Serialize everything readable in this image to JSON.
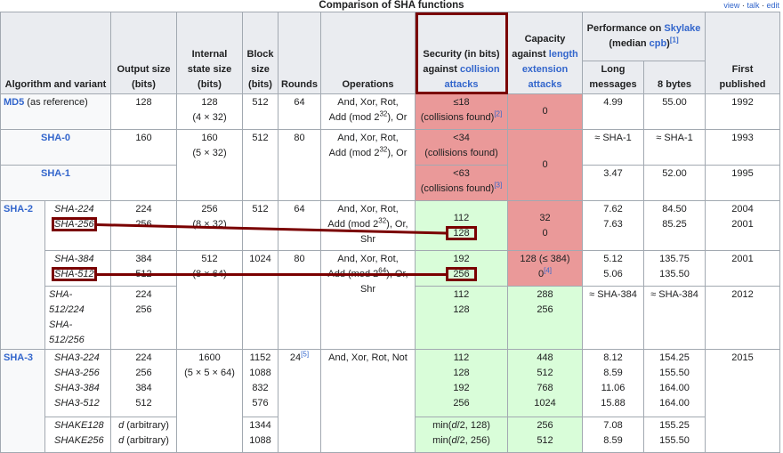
{
  "caption": "Comparison of SHA functions",
  "navbar": {
    "view": "view",
    "talk": "talk",
    "edit": "edit",
    "sep": "·"
  },
  "headers": {
    "algorithm": "Algorithm and variant",
    "output": "Output size (bits)",
    "internal": "Internal state size (bits)",
    "block": "Block size (bits)",
    "rounds": "Rounds",
    "operations": "Operations",
    "security_prefix": "Security (in bits) against ",
    "security_link": "collision attacks",
    "capacity_prefix": "Capacity against ",
    "capacity_link": "length extension attacks",
    "perf_prefix": "Performance on ",
    "perf_link1": "Skylake",
    "perf_mid": " (median ",
    "perf_link2": "cpb",
    "perf_suffix": ")",
    "perf_ref": "[1]",
    "long": "Long messages",
    "bytes8": "8 bytes",
    "first": "First published"
  },
  "md5": {
    "name": "MD5",
    "suffix": " (as reference)",
    "output": "128",
    "internal": "128",
    "internal2": "(4 × 32)",
    "block": "512",
    "rounds": "64",
    "ops1": "And, Xor, Rot,",
    "ops2": "Add (mod 2",
    "ops_exp": "32",
    "ops3": "), Or",
    "security": "≤18",
    "security2": "(collisions found)",
    "security_ref": "[2]",
    "capacity": "0",
    "long": "4.99",
    "bytes8": "55.00",
    "first": "1992"
  },
  "sha0": {
    "name": "SHA-0",
    "output": "160",
    "internal": "160",
    "internal2": "(5 × 32)",
    "block": "512",
    "rounds": "80",
    "ops1": "And, Xor, Rot,",
    "ops2": "Add (mod 2",
    "ops_exp": "32",
    "ops3": "), Or",
    "security": "<34",
    "security2": "(collisions found)",
    "capacity": "0",
    "long": "≈ SHA-1",
    "bytes8": "≈ SHA-1",
    "first": "1993"
  },
  "sha1": {
    "name": "SHA-1",
    "security": "<63",
    "security2": "(collisions found)",
    "security_ref": "[3]",
    "long": "3.47",
    "bytes8": "52.00",
    "first": "1995"
  },
  "sha2": {
    "name": "SHA-2",
    "g1": {
      "v1": "SHA-224",
      "v2": "SHA-256",
      "out1": "224",
      "out2": "256",
      "internal": "256",
      "internal2": "(8 × 32)",
      "block": "512",
      "rounds": "64",
      "ops1": "And, Xor, Rot,",
      "ops2": "Add (mod 2",
      "ops_exp": "32",
      "ops3": "), Or,",
      "ops4": "Shr",
      "sec1": "112",
      "sec2": "128",
      "cap1": "32",
      "cap2": "0",
      "long1": "7.62",
      "long2": "7.63",
      "b1": "84.50",
      "b2": "85.25",
      "first1": "2004",
      "first2": "2001"
    },
    "g2": {
      "v1": "SHA-384",
      "v2": "SHA-512",
      "out1": "384",
      "out2": "512",
      "internal": "512",
      "internal2": "(8 × 64)",
      "block": "1024",
      "rounds": "80",
      "ops1": "And, Xor, Rot,",
      "ops2": "Add (mod 2",
      "ops_exp": "64",
      "ops3": "), Or,",
      "ops4": "Shr",
      "sec1": "192",
      "sec2": "256",
      "cap1": "128 (≤ 384)",
      "cap2": "0",
      "cap2_ref": "[4]",
      "long1": "5.12",
      "long2": "5.06",
      "b1": "135.75",
      "b2": "135.50",
      "first": "2001"
    },
    "g3": {
      "v1": "SHA-512/224",
      "v2": "SHA-512/256",
      "out1": "224",
      "out2": "256",
      "sec1": "112",
      "sec2": "128",
      "cap1": "288",
      "cap2": "256",
      "long": "≈ SHA-384",
      "bytes8": "≈ SHA-384",
      "first": "2012"
    }
  },
  "sha3": {
    "name": "SHA-3",
    "g1": {
      "variants": [
        "SHA3-224",
        "SHA3-256",
        "SHA3-384",
        "SHA3-512"
      ],
      "outputs": [
        "224",
        "256",
        "384",
        "512"
      ],
      "internal": "1600",
      "internal2": "(5 × 5 × 64)",
      "blocks": [
        "1152",
        "1088",
        "832",
        "576"
      ],
      "rounds": "24",
      "rounds_ref": "[5]",
      "ops": "And, Xor, Rot, Not",
      "sec": [
        "112",
        "128",
        "192",
        "256"
      ],
      "cap": [
        "448",
        "512",
        "768",
        "1024"
      ],
      "long": [
        "8.12",
        "8.59",
        "11.06",
        "15.88"
      ],
      "b8": [
        "154.25",
        "155.50",
        "164.00",
        "164.00"
      ],
      "first": "2015"
    },
    "g2": {
      "v1": "SHAKE128",
      "v2": "SHAKE256",
      "out_d": "d",
      "out_rest": " (arbitrary)",
      "block1": "1344",
      "block2": "1088",
      "sec1_pre": "min(",
      "sec1_d": "d",
      "sec1_post": "/2, 128)",
      "sec2_pre": "min(",
      "sec2_d": "d",
      "sec2_post": "/2, 256)",
      "cap1": "256",
      "cap2": "512",
      "long1": "7.08",
      "long2": "8.59",
      "b1": "155.25",
      "b2": "155.50"
    }
  },
  "colors": {
    "red": "#ea9999",
    "green": "#d9fdd9",
    "annotation": "#7a0000",
    "link": "#3366cc"
  }
}
